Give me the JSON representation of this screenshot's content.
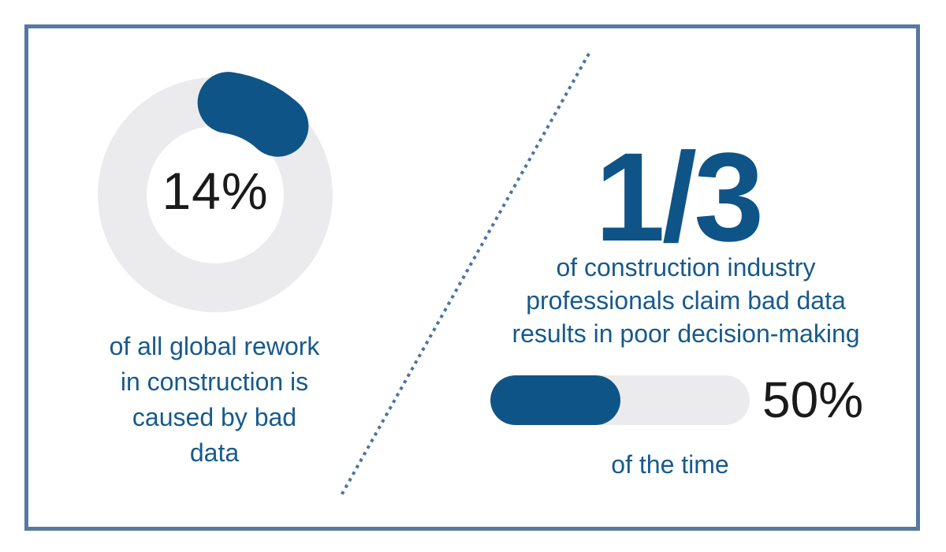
{
  "colors": {
    "brand_blue": "#0f5487",
    "text_blue": "#175a8c",
    "neutral_gray": "#ebebed",
    "value_black": "#1a1a1a",
    "divider_blue": "#4a74a2",
    "frame_border": "#56799f"
  },
  "left_stat": {
    "value": "14%",
    "caption_lines": [
      "of all global rework",
      "in construction is",
      "caused by bad",
      "data"
    ]
  },
  "right_stat": {
    "value": "1/3",
    "caption_lines": [
      "of construction industry",
      "professionals claim bad data",
      "results in poor decision-making"
    ],
    "bar": {
      "percent": 50,
      "label": "50%",
      "sub_caption": "of the time"
    }
  },
  "chart_data": [
    {
      "type": "pie",
      "subtype": "donut",
      "labels": [
        "global rework caused by bad data",
        "other"
      ],
      "values": [
        14,
        86
      ],
      "center_label": "14%",
      "title": "14% of all global rework in construction is caused by bad data",
      "colors": [
        "#0f5487",
        "#ebebed"
      ],
      "legend": "none"
    },
    {
      "type": "bar",
      "subtype": "progress",
      "categories": [
        "of the time"
      ],
      "values": [
        50
      ],
      "xlim": [
        0,
        100
      ],
      "value_label": "50%",
      "title": "1/3 of construction industry professionals claim bad data results in poor decision-making 50% of the time",
      "colors": [
        "#0f5487",
        "#ebebed"
      ],
      "legend": "none"
    }
  ]
}
